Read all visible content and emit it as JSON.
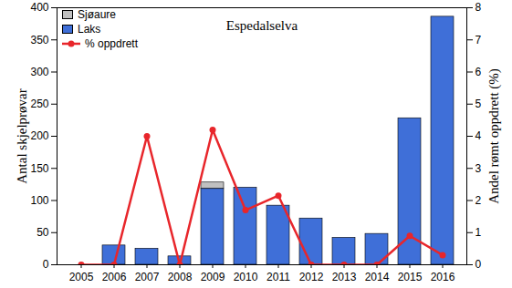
{
  "chart_data": {
    "type": "bar",
    "title": "Espedalselva",
    "categories": [
      "2005",
      "2006",
      "2007",
      "2008",
      "2009",
      "2010",
      "2011",
      "2012",
      "2013",
      "2014",
      "2015",
      "2016"
    ],
    "y_label": "Antal skjelprøvar",
    "y2_label": "Andel rømt oppdrett (%)",
    "series": [
      {
        "name": "Sjøaure",
        "color": "#c0c0c0",
        "type": "bar",
        "values": [
          0,
          0,
          0,
          0,
          10,
          0,
          0,
          0,
          0,
          0,
          0,
          0
        ]
      },
      {
        "name": "Laks",
        "color": "#3f6fd8",
        "type": "bar",
        "values": [
          0,
          30,
          25,
          13,
          118,
          120,
          92,
          72,
          42,
          48,
          228,
          386
        ]
      },
      {
        "name": "% oppdrett",
        "color": "#e8262b",
        "type": "line",
        "marker": "circle",
        "axis": "y2",
        "values": [
          0,
          0,
          4.0,
          0,
          4.2,
          1.7,
          2.15,
          0,
          0,
          0,
          0.9,
          0.3
        ]
      }
    ],
    "stacked": true,
    "legend": "top-left",
    "grid": false,
    "ylim": [
      0,
      400
    ],
    "yticks": [
      0,
      50,
      100,
      150,
      200,
      250,
      300,
      350,
      400
    ],
    "y2lim": [
      0,
      8
    ],
    "y2ticks": [
      0,
      1,
      2,
      3,
      4,
      5,
      6,
      7,
      8
    ]
  }
}
